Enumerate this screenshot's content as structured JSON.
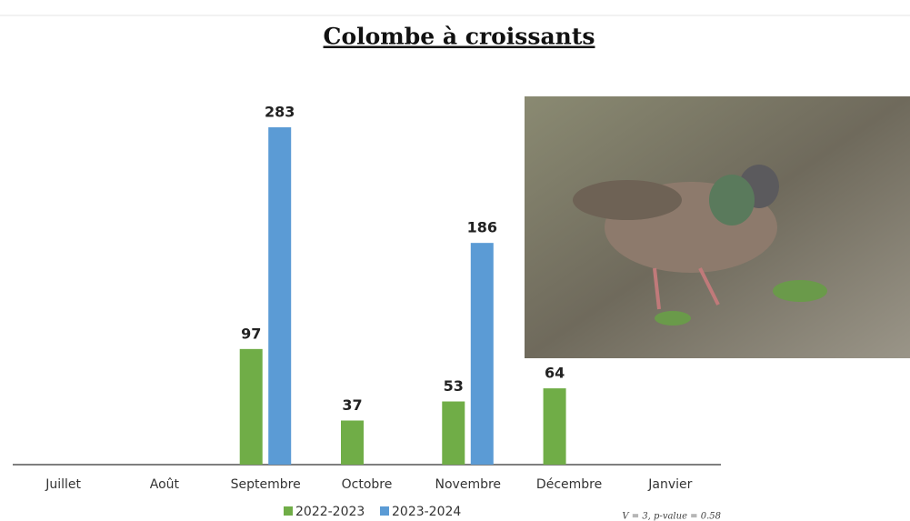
{
  "chart_data": {
    "type": "bar",
    "title": "Colombe à croissants",
    "categories": [
      "Juillet",
      "Août",
      "Septembre",
      "Octobre",
      "Novembre",
      "Décembre",
      "Janvier"
    ],
    "series": [
      {
        "name": "2022-2023",
        "color": "#70ad47",
        "values": [
          null,
          null,
          97,
          37,
          53,
          64,
          null
        ]
      },
      {
        "name": "2023-2024",
        "color": "#5b9bd5",
        "values": [
          null,
          null,
          283,
          null,
          186,
          null,
          null
        ]
      }
    ],
    "footnote": "V = 3, p-value = 0.58"
  }
}
